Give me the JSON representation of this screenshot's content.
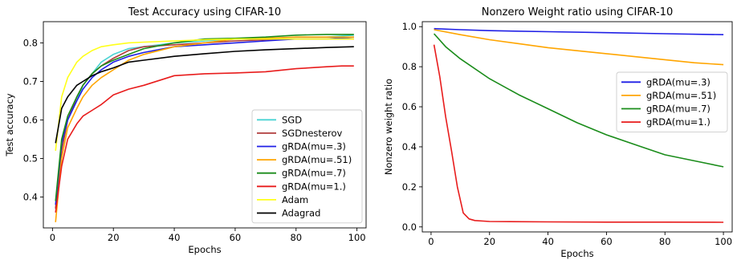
{
  "chart_data": [
    {
      "type": "line",
      "title": "Test Accuracy using CIFAR-10",
      "xlabel": "Epochs",
      "ylabel": "Test accuracy",
      "xlim": [
        -3,
        103
      ],
      "ylim": [
        0.32,
        0.855
      ],
      "xticks": [
        0,
        20,
        40,
        60,
        80,
        100
      ],
      "yticks": [
        0.4,
        0.5,
        0.6,
        0.7,
        0.8
      ],
      "legend_position": "lower-right",
      "series": [
        {
          "name": "SGD",
          "color": "#4ad3d3",
          "points": [
            [
              1,
              0.37
            ],
            [
              3,
              0.53
            ],
            [
              5,
              0.6
            ],
            [
              8,
              0.65
            ],
            [
              10,
              0.69
            ],
            [
              13,
              0.72
            ],
            [
              16,
              0.75
            ],
            [
              20,
              0.77
            ],
            [
              25,
              0.785
            ],
            [
              30,
              0.79
            ],
            [
              40,
              0.8
            ],
            [
              50,
              0.805
            ],
            [
              60,
              0.81
            ],
            [
              70,
              0.81
            ],
            [
              80,
              0.815
            ],
            [
              90,
              0.815
            ],
            [
              99,
              0.82
            ]
          ]
        },
        {
          "name": "SGDnesterov",
          "color": "#b03c3c",
          "points": [
            [
              1,
              0.37
            ],
            [
              3,
              0.52
            ],
            [
              5,
              0.6
            ],
            [
              8,
              0.66
            ],
            [
              10,
              0.69
            ],
            [
              13,
              0.72
            ],
            [
              16,
              0.74
            ],
            [
              20,
              0.76
            ],
            [
              25,
              0.78
            ],
            [
              30,
              0.79
            ],
            [
              40,
              0.795
            ],
            [
              50,
              0.8
            ],
            [
              60,
              0.805
            ],
            [
              70,
              0.808
            ],
            [
              80,
              0.81
            ],
            [
              90,
              0.81
            ],
            [
              99,
              0.81
            ]
          ]
        },
        {
          "name": "gRDA(mu=.3)",
          "color": "#1f1fe6",
          "points": [
            [
              1,
              0.38
            ],
            [
              3,
              0.54
            ],
            [
              5,
              0.6
            ],
            [
              8,
              0.65
            ],
            [
              10,
              0.68
            ],
            [
              13,
              0.71
            ],
            [
              16,
              0.73
            ],
            [
              20,
              0.75
            ],
            [
              25,
              0.765
            ],
            [
              30,
              0.775
            ],
            [
              40,
              0.79
            ],
            [
              50,
              0.795
            ],
            [
              60,
              0.8
            ],
            [
              70,
              0.805
            ],
            [
              80,
              0.81
            ],
            [
              90,
              0.81
            ],
            [
              99,
              0.815
            ]
          ]
        },
        {
          "name": "gRDA(mu=.51)",
          "color": "#ffa500",
          "points": [
            [
              1,
              0.335
            ],
            [
              3,
              0.5
            ],
            [
              5,
              0.58
            ],
            [
              8,
              0.63
            ],
            [
              10,
              0.66
            ],
            [
              13,
              0.69
            ],
            [
              16,
              0.71
            ],
            [
              20,
              0.73
            ],
            [
              25,
              0.755
            ],
            [
              30,
              0.77
            ],
            [
              40,
              0.79
            ],
            [
              50,
              0.8
            ],
            [
              60,
              0.81
            ],
            [
              70,
              0.812
            ],
            [
              80,
              0.815
            ],
            [
              90,
              0.815
            ],
            [
              99,
              0.815
            ]
          ]
        },
        {
          "name": "gRDA(mu=.7)",
          "color": "#1a8c1a",
          "points": [
            [
              1,
              0.39
            ],
            [
              3,
              0.55
            ],
            [
              5,
              0.61
            ],
            [
              8,
              0.66
            ],
            [
              10,
              0.69
            ],
            [
              13,
              0.72
            ],
            [
              16,
              0.74
            ],
            [
              20,
              0.755
            ],
            [
              25,
              0.77
            ],
            [
              30,
              0.785
            ],
            [
              40,
              0.8
            ],
            [
              50,
              0.81
            ],
            [
              60,
              0.812
            ],
            [
              70,
              0.815
            ],
            [
              80,
              0.82
            ],
            [
              90,
              0.822
            ],
            [
              99,
              0.822
            ]
          ]
        },
        {
          "name": "gRDA(mu=1.)",
          "color": "#e81c1c",
          "points": [
            [
              1,
              0.36
            ],
            [
              3,
              0.48
            ],
            [
              5,
              0.55
            ],
            [
              8,
              0.59
            ],
            [
              10,
              0.61
            ],
            [
              13,
              0.625
            ],
            [
              16,
              0.64
            ],
            [
              20,
              0.665
            ],
            [
              25,
              0.68
            ],
            [
              30,
              0.69
            ],
            [
              40,
              0.715
            ],
            [
              50,
              0.72
            ],
            [
              60,
              0.722
            ],
            [
              70,
              0.725
            ],
            [
              80,
              0.733
            ],
            [
              90,
              0.738
            ],
            [
              95,
              0.74
            ],
            [
              99,
              0.74
            ]
          ]
        },
        {
          "name": "Adam",
          "color": "#ffff1a",
          "points": [
            [
              1,
              0.52
            ],
            [
              3,
              0.66
            ],
            [
              5,
              0.71
            ],
            [
              8,
              0.75
            ],
            [
              10,
              0.765
            ],
            [
              13,
              0.78
            ],
            [
              16,
              0.79
            ],
            [
              20,
              0.795
            ],
            [
              25,
              0.8
            ],
            [
              30,
              0.802
            ],
            [
              40,
              0.805
            ],
            [
              50,
              0.808
            ],
            [
              60,
              0.81
            ],
            [
              70,
              0.81
            ],
            [
              80,
              0.81
            ],
            [
              90,
              0.81
            ],
            [
              99,
              0.81
            ]
          ]
        },
        {
          "name": "Adagrad",
          "color": "#000000",
          "points": [
            [
              1,
              0.54
            ],
            [
              3,
              0.63
            ],
            [
              5,
              0.66
            ],
            [
              8,
              0.69
            ],
            [
              10,
              0.7
            ],
            [
              13,
              0.715
            ],
            [
              16,
              0.725
            ],
            [
              20,
              0.735
            ],
            [
              25,
              0.75
            ],
            [
              30,
              0.755
            ],
            [
              40,
              0.765
            ],
            [
              50,
              0.772
            ],
            [
              60,
              0.778
            ],
            [
              70,
              0.782
            ],
            [
              80,
              0.785
            ],
            [
              90,
              0.788
            ],
            [
              99,
              0.79
            ]
          ]
        }
      ]
    },
    {
      "type": "line",
      "title": "Nonzero Weight ratio using CIFAR-10",
      "xlabel": "Epochs",
      "ylabel": "Nonzero weight ratio",
      "xlim": [
        -3,
        103
      ],
      "ylim": [
        -0.025,
        1.025
      ],
      "xticks": [
        0,
        20,
        40,
        60,
        80,
        100
      ],
      "yticks": [
        0.0,
        0.2,
        0.4,
        0.6,
        0.8,
        1.0
      ],
      "legend_position": "center-right",
      "series": [
        {
          "name": "gRDA(mu=.3)",
          "color": "#1f1fe6",
          "points": [
            [
              1,
              0.99
            ],
            [
              10,
              0.985
            ],
            [
              20,
              0.98
            ],
            [
              40,
              0.975
            ],
            [
              60,
              0.97
            ],
            [
              80,
              0.965
            ],
            [
              100,
              0.96
            ]
          ]
        },
        {
          "name": "gRDA(mu=.51)",
          "color": "#ffa500",
          "points": [
            [
              1,
              0.985
            ],
            [
              10,
              0.96
            ],
            [
              20,
              0.935
            ],
            [
              30,
              0.915
            ],
            [
              40,
              0.895
            ],
            [
              50,
              0.88
            ],
            [
              60,
              0.865
            ],
            [
              70,
              0.85
            ],
            [
              80,
              0.835
            ],
            [
              90,
              0.82
            ],
            [
              100,
              0.81
            ]
          ]
        },
        {
          "name": "gRDA(mu=.7)",
          "color": "#1a8c1a",
          "points": [
            [
              1,
              0.965
            ],
            [
              5,
              0.9
            ],
            [
              10,
              0.84
            ],
            [
              20,
              0.74
            ],
            [
              30,
              0.66
            ],
            [
              40,
              0.59
            ],
            [
              50,
              0.52
            ],
            [
              60,
              0.46
            ],
            [
              70,
              0.41
            ],
            [
              80,
              0.36
            ],
            [
              90,
              0.33
            ],
            [
              100,
              0.3
            ]
          ]
        },
        {
          "name": "gRDA(mu=1.)",
          "color": "#e81c1c",
          "points": [
            [
              1,
              0.91
            ],
            [
              3,
              0.75
            ],
            [
              5,
              0.55
            ],
            [
              7,
              0.38
            ],
            [
              9,
              0.2
            ],
            [
              11,
              0.07
            ],
            [
              13,
              0.04
            ],
            [
              15,
              0.032
            ],
            [
              20,
              0.027
            ],
            [
              40,
              0.025
            ],
            [
              60,
              0.024
            ],
            [
              80,
              0.024
            ],
            [
              100,
              0.023
            ]
          ]
        }
      ]
    }
  ]
}
